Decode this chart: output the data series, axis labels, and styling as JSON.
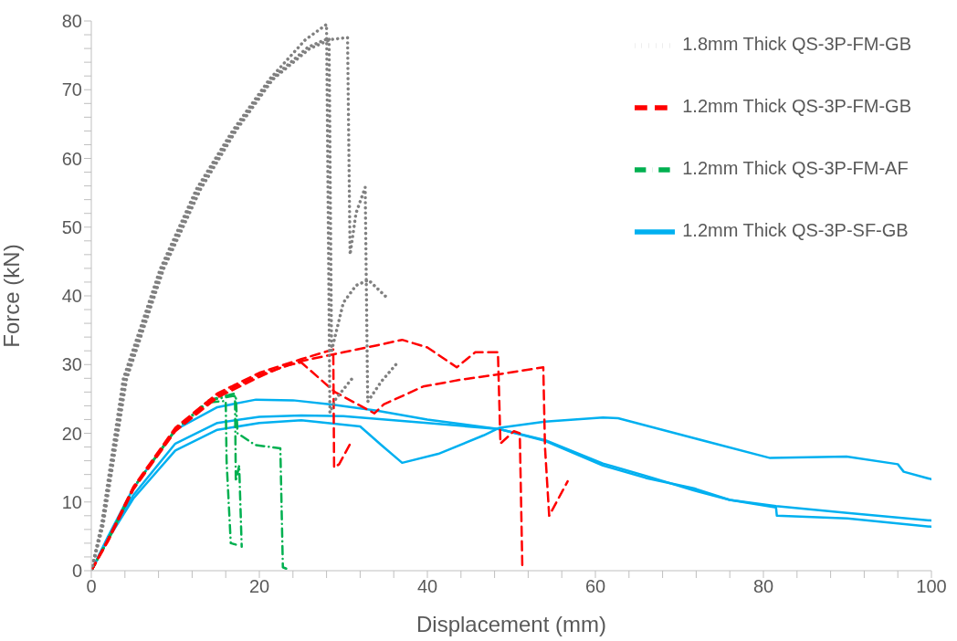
{
  "chart_data": {
    "type": "line",
    "xlabel": "Displacement (mm)",
    "ylabel": "Force (kN)",
    "xlim": [
      0,
      100
    ],
    "ylim": [
      0,
      80
    ],
    "xticks": [
      0,
      {
        "value": 4,
        "label": null
      },
      {
        "value": 8,
        "label": null
      },
      {
        "value": 12,
        "label": null
      },
      {
        "value": 16,
        "label": null
      },
      20,
      {
        "value": 24,
        "label": null
      },
      {
        "value": 28,
        "label": null
      },
      {
        "value": 32,
        "label": null
      },
      {
        "value": 36,
        "label": null
      },
      40,
      {
        "value": 44,
        "label": null
      },
      {
        "value": 48,
        "label": null
      },
      {
        "value": 52,
        "label": null
      },
      {
        "value": 56,
        "label": null
      },
      60,
      {
        "value": 64,
        "label": null
      },
      {
        "value": 68,
        "label": null
      },
      {
        "value": 72,
        "label": null
      },
      {
        "value": 76,
        "label": null
      },
      80,
      {
        "value": 84,
        "label": null
      },
      {
        "value": 88,
        "label": null
      },
      {
        "value": 92,
        "label": null
      },
      {
        "value": 96,
        "label": null
      },
      100
    ],
    "yticks": [
      0,
      {
        "value": 2,
        "label": null
      },
      {
        "value": 4,
        "label": null
      },
      {
        "value": 6,
        "label": null
      },
      {
        "value": 8,
        "label": null
      },
      10,
      {
        "value": 12,
        "label": null
      },
      {
        "value": 14,
        "label": null
      },
      {
        "value": 16,
        "label": null
      },
      {
        "value": 18,
        "label": null
      },
      20,
      {
        "value": 22,
        "label": null
      },
      {
        "value": 24,
        "label": null
      },
      {
        "value": 26,
        "label": null
      },
      {
        "value": 28,
        "label": null
      },
      30,
      {
        "value": 32,
        "label": null
      },
      {
        "value": 34,
        "label": null
      },
      {
        "value": 36,
        "label": null
      },
      {
        "value": 38,
        "label": null
      },
      40,
      {
        "value": 42,
        "label": null
      },
      {
        "value": 44,
        "label": null
      },
      {
        "value": 46,
        "label": null
      },
      {
        "value": 48,
        "label": null
      },
      50,
      {
        "value": 52,
        "label": null
      },
      {
        "value": 54,
        "label": null
      },
      {
        "value": 56,
        "label": null
      },
      {
        "value": 58,
        "label": null
      },
      60,
      {
        "value": 62,
        "label": null
      },
      {
        "value": 64,
        "label": null
      },
      {
        "value": 66,
        "label": null
      },
      {
        "value": 68,
        "label": null
      },
      70,
      {
        "value": 72,
        "label": null
      },
      {
        "value": 74,
        "label": null
      },
      {
        "value": 76,
        "label": null
      },
      {
        "value": 78,
        "label": null
      },
      80
    ],
    "grid": false,
    "legend": "top right",
    "marker": "none",
    "series": [
      {
        "name": "1.8mm Thick QS-3P-FM-GB",
        "color": "#808080",
        "line_style": "dotted",
        "x": [
          0,
          1.2,
          3.8,
          8.2,
          12.5,
          16.8,
          21.2,
          25.5,
          28,
          28.4,
          29.1,
          31.2
        ],
        "values": [
          0,
          6.6,
          27.9,
          43.9,
          55.5,
          64,
          71.5,
          77.3,
          79.5,
          23,
          25,
          28.2
        ]
      },
      {
        "color": "#808080",
        "line_style": "dotted",
        "x": [
          0,
          1.4,
          4.2,
          8.6,
          13,
          17.2,
          21.6,
          26,
          28.5,
          30.5,
          30.8,
          31.5,
          32.6,
          32.9,
          34.5,
          36.4
        ],
        "values": [
          0,
          6.6,
          27.9,
          43.9,
          55.5,
          64,
          71.5,
          76,
          77.3,
          77.6,
          46,
          52,
          55.8,
          24.6,
          27.5,
          30.2
        ]
      },
      {
        "color": "#808080",
        "line_style": "dotted",
        "x": [
          0,
          1.3,
          4,
          8.4,
          12.7,
          17,
          21.4,
          25.8,
          28.3,
          28.6,
          30,
          31.5,
          33,
          35.3
        ],
        "values": [
          0,
          6.6,
          27.9,
          43.9,
          55.5,
          64,
          71.5,
          76.2,
          77.5,
          32,
          39,
          41.5,
          42.3,
          39.6
        ]
      },
      {
        "name": "1.2mm Thick QS-3P-FM-GB",
        "color": "#ff0000",
        "line_style": "dashed",
        "x": [
          0,
          2,
          5,
          10,
          15,
          20,
          25,
          30,
          34,
          37,
          40,
          43.5,
          45.7,
          48.4,
          48.7,
          50.3,
          51,
          51.3,
          51.8
        ],
        "values": [
          0,
          4.5,
          12,
          20.5,
          25.5,
          28.5,
          30.5,
          31.8,
          32.8,
          33.6,
          32.5,
          29.6,
          31.8,
          31.8,
          18.5,
          20.3,
          20,
          0.8,
          0.5
        ]
      },
      {
        "color": "#ff0000",
        "line_style": "dashed",
        "x": [
          0,
          2,
          5,
          10,
          15,
          20,
          23,
          25,
          29,
          33.7,
          34.8,
          39.5,
          44,
          48.6,
          53.8,
          54,
          54.5,
          56.7
        ],
        "values": [
          0,
          4.3,
          11.8,
          20.3,
          25.2,
          28.2,
          29.8,
          30.3,
          26,
          22.9,
          24.2,
          26.8,
          27.8,
          28.6,
          29.6,
          18,
          8,
          13
        ]
      },
      {
        "color": "#ff0000",
        "line_style": "dashed",
        "x": [
          0,
          2,
          5,
          10,
          15,
          20,
          25,
          28.8,
          28.9,
          29.5,
          31
        ],
        "values": [
          0,
          4.6,
          12.2,
          20.8,
          25.8,
          28.8,
          30.8,
          32.2,
          15,
          15.5,
          18.9
        ]
      },
      {
        "name": "1.2mm Thick QS-3P-FM-AF",
        "color": "#00b050",
        "line_style": "dashdot",
        "x": [
          0,
          2,
          5,
          10,
          14,
          16,
          16.1,
          16.6,
          17.2
        ],
        "values": [
          0,
          4.5,
          12,
          20.5,
          24.5,
          24.7,
          16,
          4,
          3.8
        ]
      },
      {
        "color": "#00b050",
        "line_style": "dashdot",
        "x": [
          0,
          2,
          5,
          10,
          14,
          17.1,
          17.2,
          17.6,
          17.9
        ],
        "values": [
          0,
          4.5,
          12,
          20.5,
          24.8,
          25.8,
          13,
          15.3,
          3.5
        ]
      },
      {
        "color": "#00b050",
        "line_style": "dashdot",
        "x": [
          0,
          2,
          5,
          10,
          14,
          17.2,
          17.4,
          19.5,
          22.5,
          22.8,
          23.2
        ],
        "values": [
          0,
          4.5,
          12,
          20.5,
          24.8,
          25.5,
          20,
          18.3,
          17.8,
          0.5,
          0.3
        ]
      },
      {
        "name": "1.2mm Thick QS-3P-SF-GB",
        "color": "#00b0f0",
        "line_style": "solid",
        "x": [
          0,
          2,
          5,
          10,
          15,
          19.6,
          24,
          28.6,
          34,
          40,
          48.6,
          54,
          60.9,
          66,
          71.7,
          76,
          81.5,
          90,
          100
        ],
        "values": [
          0,
          5,
          12,
          20.5,
          23.8,
          24.9,
          24.8,
          24.2,
          23.3,
          22,
          20.6,
          18.9,
          15.3,
          13.5,
          12,
          10.3,
          9.4,
          8.4,
          7.3
        ]
      },
      {
        "color": "#00b0f0",
        "line_style": "solid",
        "x": [
          0,
          2,
          5,
          10,
          15,
          20,
          25,
          30,
          35,
          40,
          48.6,
          54,
          60.9,
          66,
          71.7,
          76,
          81.5,
          81.6,
          90,
          100
        ],
        "values": [
          0,
          4.8,
          11,
          18.5,
          21.5,
          22.4,
          22.6,
          22.5,
          22,
          21.5,
          20.6,
          19,
          15.6,
          13.8,
          11.7,
          10.3,
          9.2,
          8,
          7.6,
          6.4
        ]
      },
      {
        "color": "#00b0f0",
        "line_style": "solid",
        "x": [
          0,
          2,
          5,
          10,
          15,
          20,
          25,
          32,
          34.5,
          37,
          41.3,
          46.7,
          48.6,
          54,
          60.9,
          62.7,
          71.7,
          80.8,
          89.9,
          96,
          96.7,
          100
        ],
        "values": [
          0,
          4.6,
          10.5,
          17.5,
          20.5,
          21.5,
          21.9,
          21,
          18.3,
          15.7,
          17,
          19.7,
          20.8,
          21.7,
          22.3,
          22.2,
          19.3,
          16.4,
          16.6,
          15.5,
          14.4,
          13.3
        ]
      }
    ]
  }
}
